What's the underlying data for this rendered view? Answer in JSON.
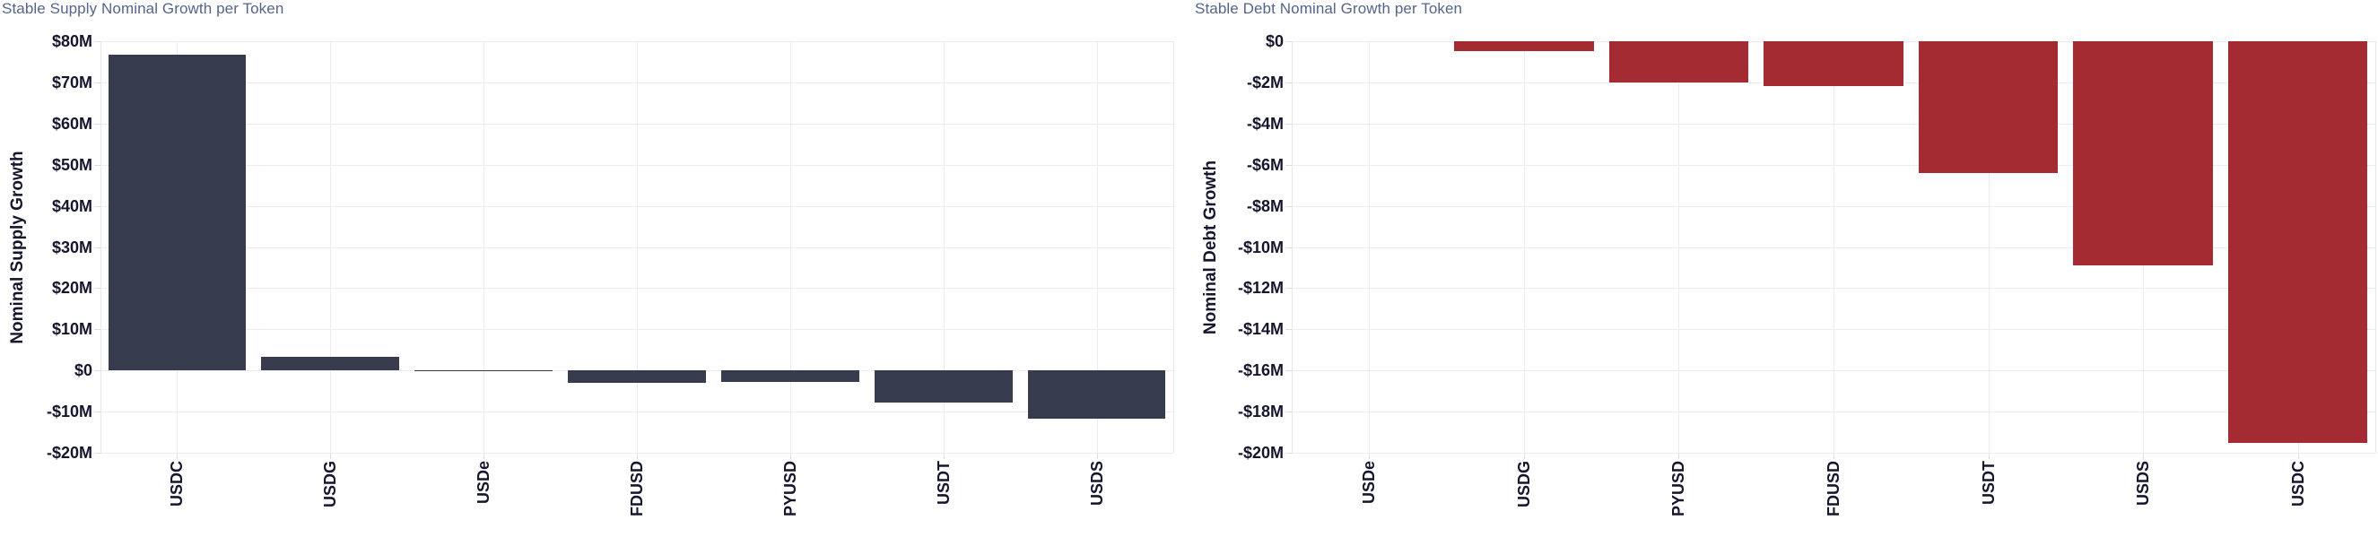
{
  "chart_data": [
    {
      "type": "bar",
      "title": "Stable Supply Nominal Growth per Token",
      "ylabel": "Nominal Supply Growth",
      "xlabel": "",
      "categories": [
        "USDC",
        "USDG",
        "USDe",
        "FDUSD",
        "PYUSD",
        "USDT",
        "USDS"
      ],
      "values": [
        76.7,
        3.4,
        0.15,
        -3.1,
        -2.8,
        -7.8,
        -11.8
      ],
      "unit": "millions USD",
      "ylim": [
        -20,
        80
      ],
      "ystep": 10,
      "ytick_labels": [
        "$80M",
        "$70M",
        "$60M",
        "$50M",
        "$40M",
        "$30M",
        "$20M",
        "$10M",
        "$0",
        "-$10M",
        "-$20M"
      ],
      "grid": true,
      "legend": false,
      "bar_color": "#373B4E"
    },
    {
      "type": "bar",
      "title": "Stable Debt Nominal Growth per Token",
      "ylabel": "Nominal Debt Growth",
      "xlabel": "",
      "categories": [
        "USDe",
        "USDG",
        "PYUSD",
        "FDUSD",
        "USDT",
        "USDS",
        "USDC"
      ],
      "values": [
        0,
        -0.5,
        -2.0,
        -2.2,
        -6.4,
        -10.9,
        -19.5
      ],
      "unit": "millions USD",
      "ylim": [
        -20,
        0
      ],
      "ystep": 2,
      "ytick_labels": [
        "$0",
        "-$2M",
        "-$4M",
        "-$6M",
        "-$8M",
        "-$10M",
        "-$12M",
        "-$14M",
        "-$16M",
        "-$18M",
        "-$20M"
      ],
      "grid": true,
      "legend": false,
      "bar_color": "#A52B33"
    }
  ],
  "theme": {
    "background": "#ffffff",
    "title_color": "#56648C",
    "axis_text_color": "#15162E",
    "gridline_color": "#ECECF3",
    "supply_bar_color": "#373B4E",
    "debt_bar_color": "#A52B33"
  }
}
